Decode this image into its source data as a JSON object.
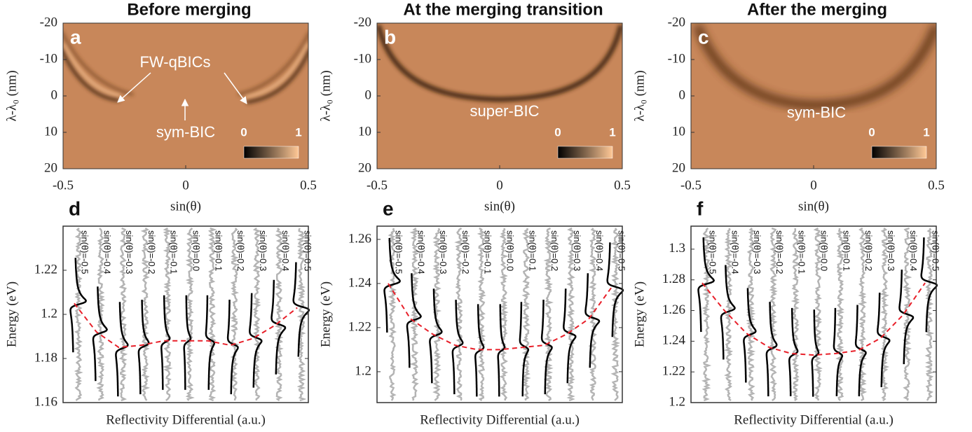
{
  "chart_data": [
    {
      "type": "heatmap",
      "title": "Before merging",
      "panel_label": "a",
      "xlabel": "sin(θ)",
      "ylabel": "λ-λ₀ (nm)",
      "xlim": [
        -0.5,
        0.5
      ],
      "xticks": [
        -0.5,
        0,
        0.5
      ],
      "ylim": [
        20,
        -20
      ],
      "yticks": [
        -20,
        -10,
        0,
        10,
        20
      ],
      "annotations": [
        "FW-qBICs",
        "sym-BIC"
      ],
      "colorbar": {
        "ticks": [
          0,
          1
        ],
        "colors": [
          "#000000",
          "#ffc896"
        ]
      },
      "color": "#c8875a"
    },
    {
      "type": "heatmap",
      "title": "At the merging transition",
      "panel_label": "b",
      "xlabel": "sin(θ)",
      "ylabel": "λ-λ₀ (nm)",
      "xlim": [
        -0.5,
        0.5
      ],
      "xticks": [
        -0.5,
        0,
        0.5
      ],
      "ylim": [
        20,
        -20
      ],
      "yticks": [
        -20,
        -10,
        0,
        10,
        20
      ],
      "annotations": [
        "super-BIC"
      ],
      "colorbar": {
        "ticks": [
          0,
          1
        ],
        "colors": [
          "#000000",
          "#ffc896"
        ]
      },
      "color": "#c8875a"
    },
    {
      "type": "heatmap",
      "title": "After the merging",
      "panel_label": "c",
      "xlabel": "sin(θ)",
      "ylabel": "λ-λ₀ (nm)",
      "xlim": [
        -0.5,
        0.5
      ],
      "xticks": [
        -0.5,
        0,
        0.5
      ],
      "ylim": [
        20,
        -20
      ],
      "yticks": [
        -20,
        -10,
        0,
        10,
        20
      ],
      "annotations": [
        "sym-BIC"
      ],
      "colorbar": {
        "ticks": [
          0,
          1
        ],
        "colors": [
          "#000000",
          "#ffc896"
        ]
      },
      "color": "#c8875a"
    },
    {
      "type": "spectra",
      "panel_label": "d",
      "xlabel": "Reflectivity Differential (a.u.)",
      "ylabel": "Energy (eV)",
      "categories": [
        "sin(θ)=-0.5",
        "sin(θ)=-0.4",
        "sin(θ)=-0.3",
        "sin(θ)=-0.2",
        "sin(θ)=-0.1",
        "sin(θ)=0.0",
        "sin(θ)=0.1",
        "sin(θ)=0.2",
        "sin(θ)=0.3",
        "sin(θ)=0.4",
        "sin(θ)=0.5"
      ],
      "values": [
        1.205,
        1.192,
        1.185,
        1.186,
        1.188,
        1.188,
        1.188,
        1.186,
        1.189,
        1.195,
        1.203
      ],
      "color": "#e8202a",
      "ylim": [
        1.16,
        1.24
      ],
      "yticks": [
        1.16,
        1.18,
        1.2,
        1.22
      ]
    },
    {
      "type": "spectra",
      "panel_label": "e",
      "xlabel": "Reflectivity Differential (a.u.)",
      "ylabel": "Energy (eV)",
      "categories": [
        "sin(θ)=-0.5",
        "sin(θ)=-0.4",
        "sin(θ)=-0.3",
        "sin(θ)=-0.2",
        "sin(θ)=-0.1",
        "sin(θ)=0.0",
        "sin(θ)=0.1",
        "sin(θ)=0.2",
        "sin(θ)=0.3",
        "sin(θ)=0.4",
        "sin(θ)=0.5"
      ],
      "values": [
        1.24,
        1.224,
        1.217,
        1.212,
        1.21,
        1.21,
        1.211,
        1.212,
        1.217,
        1.224,
        1.238
      ],
      "color": "#e8202a",
      "ylim": [
        1.186,
        1.266
      ],
      "yticks": [
        1.2,
        1.22,
        1.24,
        1.26
      ]
    },
    {
      "type": "spectra",
      "panel_label": "f",
      "xlabel": "Reflectivity Differential (a.u.)",
      "ylabel": "Energy (eV)",
      "categories": [
        "sin(θ)=-0.5",
        "sin(θ)=-0.4",
        "sin(θ)=-0.3",
        "sin(θ)=-0.2",
        "sin(θ)=-0.1",
        "sin(θ)=0.0",
        "sin(θ)=0.1",
        "sin(θ)=0.2",
        "sin(θ)=0.3",
        "sin(θ)=0.4",
        "sin(θ)=0.5"
      ],
      "values": [
        1.278,
        1.26,
        1.245,
        1.236,
        1.232,
        1.231,
        1.232,
        1.234,
        1.242,
        1.257,
        1.278
      ],
      "color": "#e8202a",
      "ylim": [
        1.2,
        1.315
      ],
      "yticks": [
        1.2,
        1.22,
        1.24,
        1.26,
        1.28,
        1.3
      ]
    }
  ]
}
